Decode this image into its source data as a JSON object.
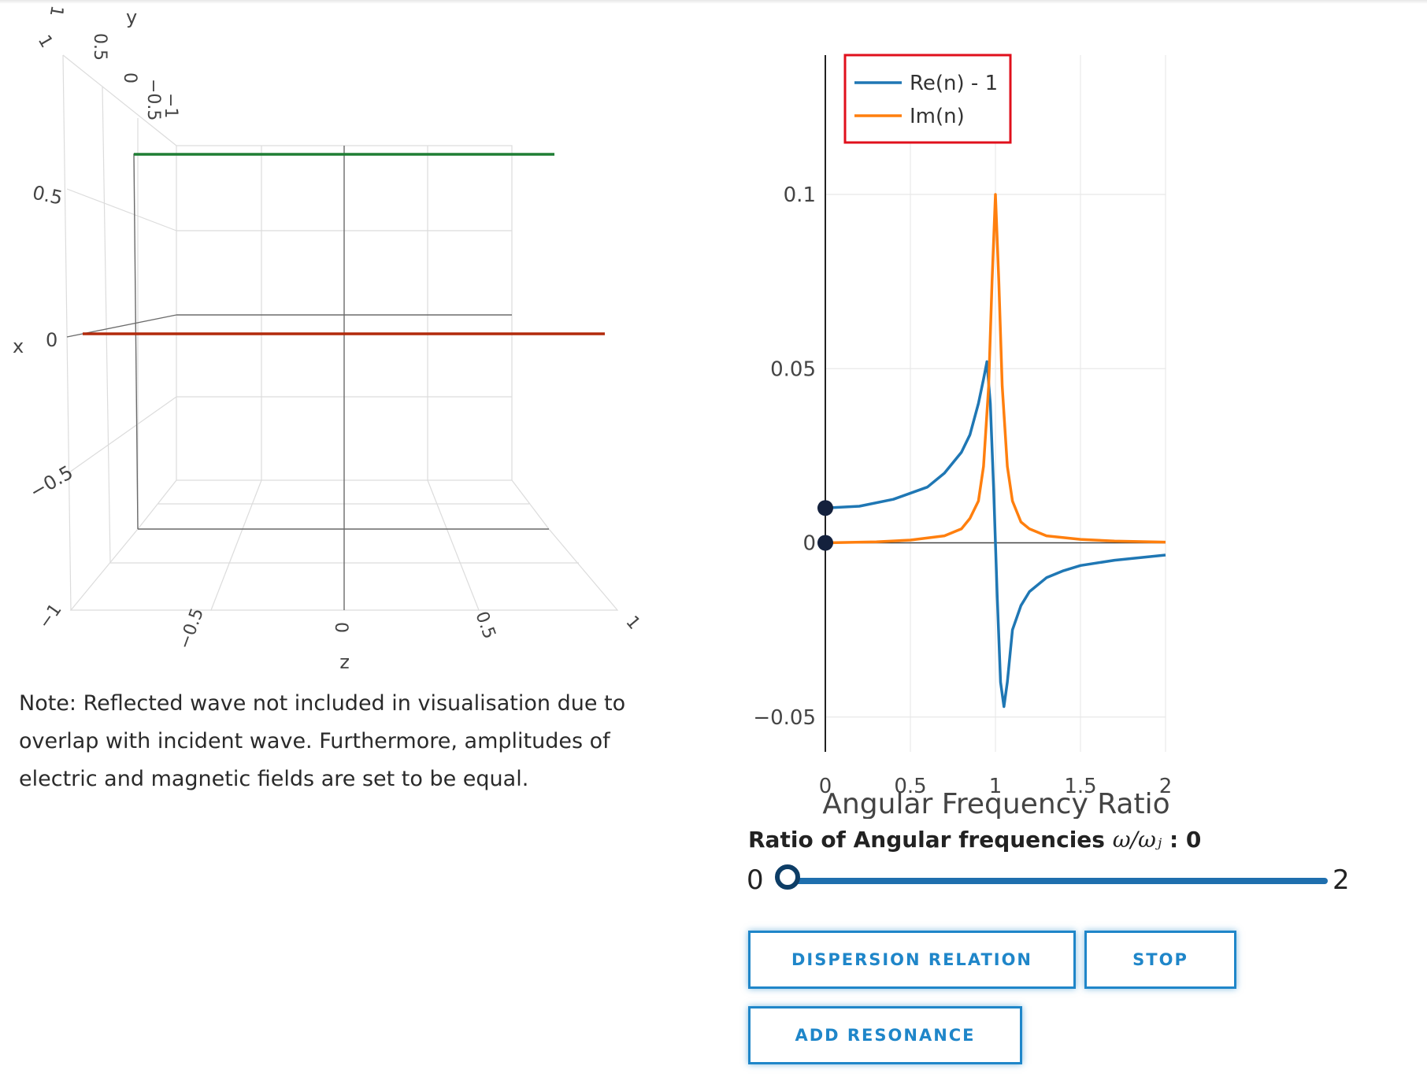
{
  "plot3d": {
    "axes": {
      "x": "x",
      "y": "y",
      "z": "z"
    },
    "x_ticks": [
      "0.5",
      "0",
      "−0.5"
    ],
    "y_ticks": [
      "1",
      "0.5",
      "0",
      "−0.5",
      "−1"
    ],
    "z_ticks": [
      "−1",
      "−0.5",
      "0",
      "0.5",
      "1"
    ],
    "corner_tick": "1",
    "lines": [
      {
        "name": "magnetic-field-line",
        "color": "#1e7e34"
      },
      {
        "name": "electric-field-line",
        "color": "#b22a0c"
      }
    ]
  },
  "note": "Note: Reflected wave not included in visualisation due to overlap with incident wave. Furthermore, amplitudes of electric and magnetic fields are set to be equal.",
  "chart_data": {
    "type": "line",
    "xlabel": "Angular Frequency Ratio",
    "ylabel": "",
    "xlim": [
      0,
      2
    ],
    "ylim": [
      -0.06,
      0.14
    ],
    "x_ticks": [
      0,
      0.5,
      1,
      1.5,
      2
    ],
    "x_tick_labels": [
      "0",
      "0.5",
      "1",
      "1.5",
      "2"
    ],
    "y_ticks": [
      -0.05,
      0,
      0.05,
      0.1
    ],
    "y_tick_labels": [
      "−0.05",
      "0",
      "0.05",
      "0.1"
    ],
    "grid": true,
    "legend": "top-left",
    "series": [
      {
        "name": "Re(n) - 1",
        "color": "#1f77b4",
        "x": [
          0,
          0.2,
          0.4,
          0.6,
          0.7,
          0.8,
          0.85,
          0.9,
          0.93,
          0.95,
          0.97,
          0.99,
          1.0,
          1.01,
          1.03,
          1.05,
          1.07,
          1.1,
          1.15,
          1.2,
          1.3,
          1.4,
          1.5,
          1.7,
          2.0
        ],
        "y": [
          0.01,
          0.0105,
          0.0125,
          0.016,
          0.02,
          0.026,
          0.031,
          0.04,
          0.047,
          0.052,
          0.04,
          0.015,
          0.0,
          -0.015,
          -0.04,
          -0.047,
          -0.04,
          -0.025,
          -0.018,
          -0.014,
          -0.01,
          -0.008,
          -0.0065,
          -0.005,
          -0.0035
        ]
      },
      {
        "name": "Im(n)",
        "color": "#ff7f0e",
        "x": [
          0,
          0.3,
          0.5,
          0.7,
          0.8,
          0.85,
          0.9,
          0.93,
          0.96,
          0.98,
          1.0,
          1.02,
          1.04,
          1.07,
          1.1,
          1.15,
          1.2,
          1.3,
          1.5,
          1.7,
          2.0
        ],
        "y": [
          0.0,
          0.0003,
          0.0008,
          0.002,
          0.004,
          0.007,
          0.012,
          0.022,
          0.045,
          0.075,
          0.1,
          0.075,
          0.045,
          0.022,
          0.012,
          0.006,
          0.004,
          0.002,
          0.001,
          0.0005,
          0.0002
        ]
      }
    ],
    "markers": [
      {
        "x": 0,
        "y": 0.01,
        "series": "Re(n) - 1"
      },
      {
        "x": 0,
        "y": 0.0,
        "series": "Im(n)"
      }
    ]
  },
  "slider": {
    "label": "Ratio of Angular frequencies",
    "math": "ω/ωⱼ",
    "value_text": ": 0",
    "min_label": "0",
    "max_label": "2",
    "min": 0,
    "max": 2,
    "value": 0
  },
  "buttons": {
    "dispersion": "DISPERSION RELATION",
    "stop": "STOP",
    "add": "ADD RESONANCE"
  }
}
